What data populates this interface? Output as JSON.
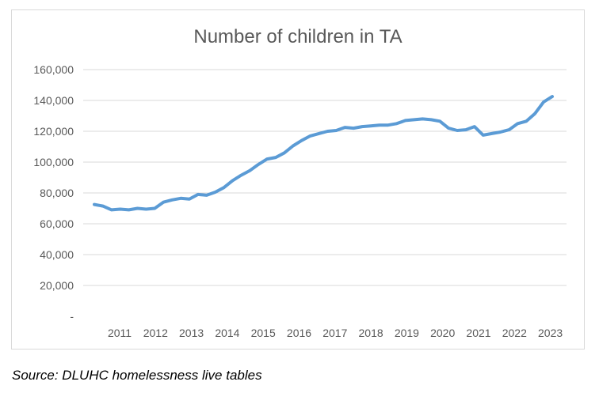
{
  "chart_data": {
    "type": "line",
    "title": "Number of children in TA",
    "xlabel": "",
    "ylabel": "",
    "ylim": [
      0,
      160000
    ],
    "yticks": [
      "-",
      "20,000",
      "40,000",
      "60,000",
      "80,000",
      "100,000",
      "120,000",
      "140,000",
      "160,000"
    ],
    "xticks": [
      "2011",
      "2012",
      "2013",
      "2014",
      "2015",
      "2016",
      "2017",
      "2018",
      "2019",
      "2020",
      "2021",
      "2022",
      "2023"
    ],
    "grid": "horizontal",
    "legend": "none",
    "series": [
      {
        "color": "#5b9bd5",
        "values": [
          72500,
          71500,
          69000,
          69500,
          69000,
          70000,
          69500,
          70000,
          74000,
          75500,
          76500,
          76000,
          79000,
          78500,
          80500,
          83500,
          88000,
          91500,
          94500,
          98500,
          102000,
          103000,
          106000,
          110500,
          114000,
          117000,
          118500,
          120000,
          120500,
          122500,
          122000,
          123000,
          123500,
          124000,
          124000,
          125000,
          127000,
          127500,
          128000,
          127500,
          126500,
          122000,
          120500,
          121000,
          123000,
          117500,
          118500,
          119500,
          121000,
          125000,
          126500,
          131500,
          139000,
          142500
        ]
      }
    ]
  },
  "footer": {
    "source": "Source: DLUHC homelessness live tables"
  }
}
